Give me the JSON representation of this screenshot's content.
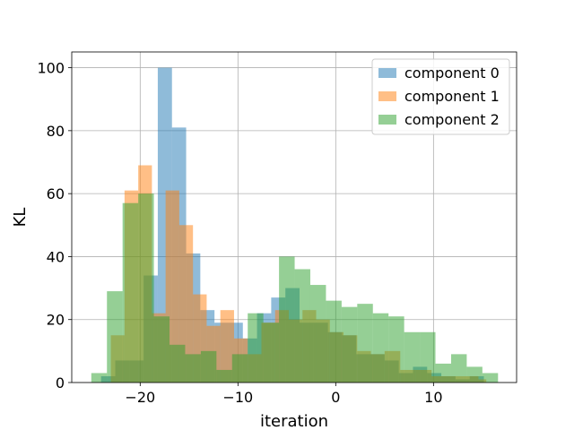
{
  "chart_data": {
    "type": "histogram",
    "xlabel": "iteration",
    "ylabel": "KL",
    "xlim": [
      -27,
      18.5
    ],
    "ylim": [
      0,
      105
    ],
    "xticks": [
      -20,
      -10,
      0,
      10
    ],
    "yticks": [
      0,
      20,
      40,
      60,
      80,
      100
    ],
    "xtick_labels": [
      "−20",
      "−10",
      "0",
      "10"
    ],
    "ytick_labels": [
      "0",
      "20",
      "40",
      "60",
      "80",
      "100"
    ],
    "grid": true,
    "legend_position": "top-right",
    "series": [
      {
        "name": "component 0",
        "color": "#1f77b4",
        "alpha": 0.5,
        "bin_edges": [
          -24.0,
          -22.55,
          -21.1,
          -19.65,
          -18.2,
          -16.75,
          -15.3,
          -13.85,
          -12.4,
          -10.95,
          -9.5,
          -8.05,
          -6.6,
          -5.15,
          -3.7,
          -2.25,
          -0.8,
          0.65,
          2.1,
          3.55,
          5.0,
          6.45,
          7.9,
          9.35,
          10.8,
          12.25,
          13.7,
          15.15
        ],
        "counts": [
          2,
          7,
          7,
          34,
          100,
          81,
          41,
          23,
          19,
          19,
          14,
          22,
          27,
          30,
          19,
          19,
          16,
          15,
          9,
          9,
          7,
          3,
          5,
          3,
          2,
          1,
          2
        ]
      },
      {
        "name": "component 1",
        "color": "#ff7f0e",
        "alpha": 0.5,
        "bin_edges": [
          -23.0,
          -21.6,
          -20.2,
          -18.8,
          -17.4,
          -16.0,
          -14.6,
          -13.2,
          -11.8,
          -10.4,
          -9.0,
          -7.6,
          -6.2,
          -4.8,
          -3.4,
          -2.0,
          -0.6,
          0.8,
          2.2,
          3.6,
          5.0,
          6.6,
          8.2,
          9.8,
          11.4,
          13.0,
          14.6,
          15.4
        ],
        "counts": [
          15,
          61,
          69,
          22,
          61,
          50,
          28,
          18,
          23,
          14,
          9,
          19,
          23,
          20,
          23,
          20,
          16,
          15,
          10,
          9,
          10,
          4,
          4,
          2,
          2,
          2,
          1
        ]
      },
      {
        "name": "component 2",
        "color": "#2ca02c",
        "alpha": 0.5,
        "bin_edges": [
          -25.0,
          -23.4,
          -21.8,
          -20.2,
          -18.6,
          -17.0,
          -15.4,
          -13.8,
          -12.2,
          -10.6,
          -9.0,
          -7.4,
          -5.8,
          -4.2,
          -2.6,
          -1.0,
          0.6,
          2.2,
          3.8,
          5.4,
          7.0,
          8.6,
          10.2,
          11.8,
          13.4,
          15.0,
          16.6
        ],
        "counts": [
          3,
          29,
          57,
          60,
          21,
          12,
          9,
          10,
          4,
          9,
          22,
          19,
          40,
          36,
          31,
          26,
          24,
          25,
          22,
          21,
          16,
          16,
          6,
          9,
          5,
          3
        ]
      }
    ]
  }
}
